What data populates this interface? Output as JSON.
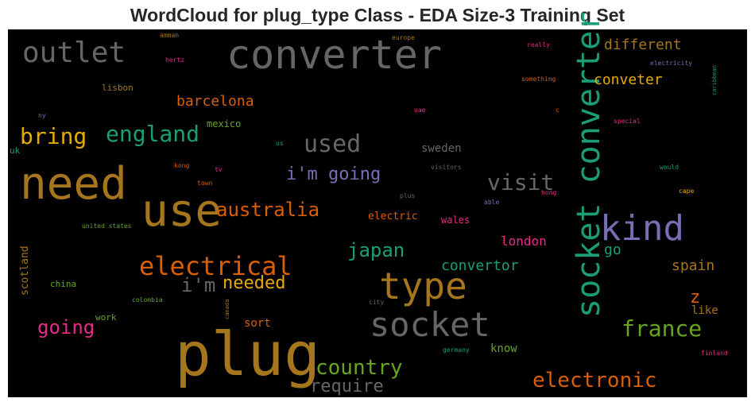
{
  "title": "WordCloud for plug_type Class - EDA Size-3 Training Set",
  "words": [
    {
      "text": "converter",
      "color": "#666666"
    },
    {
      "text": "outlet",
      "color": "#666666"
    },
    {
      "text": "need",
      "color": "#a6761d"
    },
    {
      "text": "use",
      "color": "#a6761d"
    },
    {
      "text": "plug",
      "color": "#a6761d"
    },
    {
      "text": "socket converter",
      "color": "#1b9e77"
    },
    {
      "text": "kind",
      "color": "#7570b3"
    },
    {
      "text": "type",
      "color": "#a6761d"
    },
    {
      "text": "socket",
      "color": "#666666"
    },
    {
      "text": "electrical",
      "color": "#d95f02"
    },
    {
      "text": "england",
      "color": "#1b9e77"
    },
    {
      "text": "bring",
      "color": "#e6ab02"
    },
    {
      "text": "used",
      "color": "#666666"
    },
    {
      "text": "visit",
      "color": "#666666"
    },
    {
      "text": "australia",
      "color": "#d95f02"
    },
    {
      "text": "i'm going",
      "color": "#7570b3"
    },
    {
      "text": "barcelona",
      "color": "#d95f02"
    },
    {
      "text": "mexico",
      "color": "#66a61e"
    },
    {
      "text": "sweden",
      "color": "#666666"
    },
    {
      "text": "japan",
      "color": "#1b9e77"
    },
    {
      "text": "i'm",
      "color": "#666666"
    },
    {
      "text": "needed",
      "color": "#e6ab02"
    },
    {
      "text": "convertor",
      "color": "#1b9e77"
    },
    {
      "text": "london",
      "color": "#e7298a"
    },
    {
      "text": "go",
      "color": "#1b9e77"
    },
    {
      "text": "spain",
      "color": "#a6761d"
    },
    {
      "text": "different",
      "color": "#a6761d"
    },
    {
      "text": "conveter",
      "color": "#e6ab02"
    },
    {
      "text": "france",
      "color": "#66a61e"
    },
    {
      "text": "z",
      "color": "#d95f02"
    },
    {
      "text": "like",
      "color": "#a6761d"
    },
    {
      "text": "country",
      "color": "#66a61e"
    },
    {
      "text": "require",
      "color": "#666666"
    },
    {
      "text": "electronic",
      "color": "#d95f02"
    },
    {
      "text": "know",
      "color": "#66a61e"
    },
    {
      "text": "going",
      "color": "#e7298a"
    },
    {
      "text": "sort",
      "color": "#d95f02"
    },
    {
      "text": "electric",
      "color": "#d95f02"
    },
    {
      "text": "wales",
      "color": "#e7298a"
    },
    {
      "text": "scotland",
      "color": "#a6761d"
    },
    {
      "text": "china",
      "color": "#66a61e"
    },
    {
      "text": "colombia",
      "color": "#66a61e"
    },
    {
      "text": "work",
      "color": "#66a61e"
    },
    {
      "text": "canada",
      "color": "#a6761d"
    },
    {
      "text": "city",
      "color": "#666666"
    },
    {
      "text": "germany",
      "color": "#1b9e77"
    },
    {
      "text": "finland",
      "color": "#e7298a"
    },
    {
      "text": "united states",
      "color": "#66a61e"
    },
    {
      "text": "uk",
      "color": "#1b9e77"
    },
    {
      "text": "us",
      "color": "#1b9e77"
    },
    {
      "text": "ny",
      "color": "#7570b3"
    },
    {
      "text": "lisbon",
      "color": "#a6761d"
    },
    {
      "text": "hertz",
      "color": "#e7298a"
    },
    {
      "text": "amman",
      "color": "#a6761d"
    },
    {
      "text": "europe",
      "color": "#a6761d"
    },
    {
      "text": "really",
      "color": "#e7298a"
    },
    {
      "text": "electricity",
      "color": "#7570b3"
    },
    {
      "text": "caribbean",
      "color": "#1b9e77"
    },
    {
      "text": "something",
      "color": "#d95f02"
    },
    {
      "text": "uae",
      "color": "#e7298a"
    },
    {
      "text": "c",
      "color": "#d95f02"
    },
    {
      "text": "special",
      "color": "#e7298a"
    },
    {
      "text": "kong",
      "color": "#d95f02"
    },
    {
      "text": "tv",
      "color": "#e7298a"
    },
    {
      "text": "town",
      "color": "#d95f02"
    },
    {
      "text": "visitors",
      "color": "#666666"
    },
    {
      "text": "would",
      "color": "#1b9e77"
    },
    {
      "text": "cape",
      "color": "#e6ab02"
    },
    {
      "text": "hong",
      "color": "#e7298a"
    },
    {
      "text": "plus",
      "color": "#666666"
    },
    {
      "text": "able",
      "color": "#7570b3"
    }
  ]
}
